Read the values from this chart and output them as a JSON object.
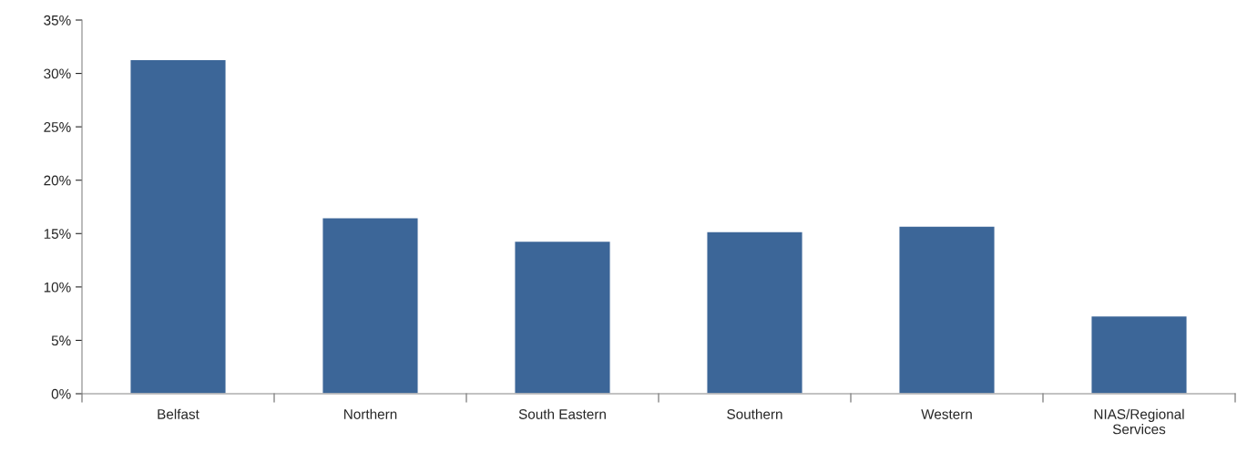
{
  "chart_data": {
    "type": "bar",
    "categories": [
      "Belfast",
      "Northern",
      "South Eastern",
      "Southern",
      "Western",
      "NIAS/Regional\nServices"
    ],
    "values": [
      31.3,
      16.5,
      14.3,
      15.2,
      15.7,
      7.3
    ],
    "color": "#3c6698",
    "ylim": [
      0,
      35
    ],
    "yticks": [
      {
        "value": 0,
        "label": "0%"
      },
      {
        "value": 5,
        "label": "5%"
      },
      {
        "value": 10,
        "label": "10%"
      },
      {
        "value": 15,
        "label": "15%"
      },
      {
        "value": 20,
        "label": "20%"
      },
      {
        "value": 25,
        "label": "25%"
      },
      {
        "value": 30,
        "label": "30%"
      },
      {
        "value": 35,
        "label": "35%"
      }
    ],
    "grid": false,
    "legend": false
  }
}
